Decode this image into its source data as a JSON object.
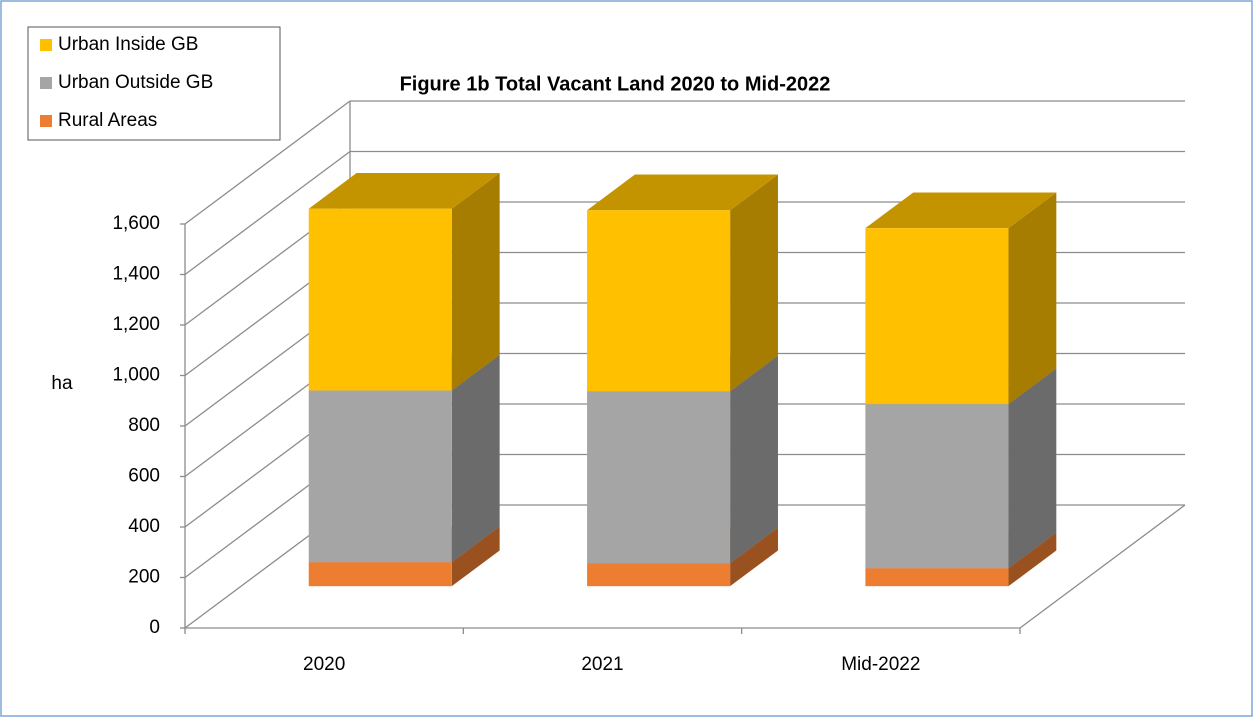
{
  "chart_data": {
    "type": "bar3d_stacked",
    "title": "Figure 1b  Total Vacant Land 2020  to Mid-2022",
    "y_label": "ha",
    "categories": [
      "2020",
      "2021",
      "Mid-2022"
    ],
    "series": [
      {
        "name": "Urban Inside GB",
        "color": "#ffc000",
        "values": [
          720,
          717,
          697
        ]
      },
      {
        "name": "Urban Outside GB",
        "color": "#a5a5a5",
        "values": [
          680,
          681,
          650
        ]
      },
      {
        "name": "Rural Areas",
        "color": "#ed7d31",
        "values": [
          95,
          91,
          71
        ]
      }
    ],
    "ylim": [
      0,
      1600
    ],
    "yticks": [
      0,
      200,
      400,
      600,
      800,
      {
        "value": 1000,
        "label": "1,000"
      },
      {
        "value": 1200,
        "label": "1,200"
      },
      {
        "value": 1400,
        "label": "1,400"
      },
      {
        "value": 1600,
        "label": "1,600"
      }
    ],
    "grid": true,
    "legend": "top-left"
  }
}
